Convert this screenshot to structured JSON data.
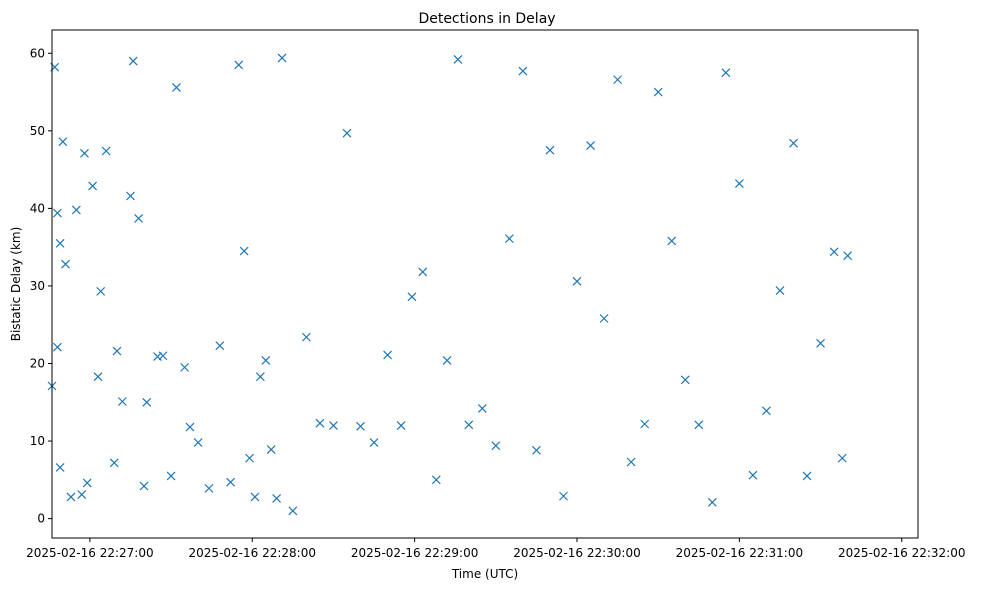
{
  "chart_data": {
    "type": "scatter",
    "title": "Detections in Delay",
    "xlabel": "Time (UTC)",
    "ylabel": "Bistatic Delay (km)",
    "marker": "x",
    "color": "#1f77b4",
    "grid": false,
    "xlim": [
      "2025-02-16 22:26:46",
      "2025-02-16 22:32:06"
    ],
    "ylim": [
      -2.5,
      63
    ],
    "xticks": [
      "2025-02-16 22:27:00",
      "2025-02-16 22:28:00",
      "2025-02-16 22:29:00",
      "2025-02-16 22:30:00",
      "2025-02-16 22:31:00",
      "2025-02-16 22:32:00"
    ],
    "yticks": [
      0,
      10,
      20,
      30,
      40,
      50,
      60
    ],
    "series": [
      {
        "x": [
          "2025-02-16 22:26:46",
          "2025-02-16 22:26:47",
          "2025-02-16 22:26:48",
          "2025-02-16 22:26:48",
          "2025-02-16 22:26:49",
          "2025-02-16 22:26:49",
          "2025-02-16 22:26:50",
          "2025-02-16 22:26:51",
          "2025-02-16 22:26:53",
          "2025-02-16 22:26:55",
          "2025-02-16 22:26:57",
          "2025-02-16 22:26:58",
          "2025-02-16 22:26:59",
          "2025-02-16 22:27:01",
          "2025-02-16 22:27:03",
          "2025-02-16 22:27:04",
          "2025-02-16 22:27:06",
          "2025-02-16 22:27:09",
          "2025-02-16 22:27:10",
          "2025-02-16 22:27:12",
          "2025-02-16 22:27:15",
          "2025-02-16 22:27:16",
          "2025-02-16 22:27:18",
          "2025-02-16 22:27:20",
          "2025-02-16 22:27:21",
          "2025-02-16 22:27:25",
          "2025-02-16 22:27:27",
          "2025-02-16 22:27:30",
          "2025-02-16 22:27:32",
          "2025-02-16 22:27:35",
          "2025-02-16 22:27:37",
          "2025-02-16 22:27:40",
          "2025-02-16 22:27:44",
          "2025-02-16 22:27:48",
          "2025-02-16 22:27:52",
          "2025-02-16 22:27:55",
          "2025-02-16 22:27:57",
          "2025-02-16 22:27:59",
          "2025-02-16 22:28:01",
          "2025-02-16 22:28:03",
          "2025-02-16 22:28:05",
          "2025-02-16 22:28:07",
          "2025-02-16 22:28:09",
          "2025-02-16 22:28:11",
          "2025-02-16 22:28:15",
          "2025-02-16 22:28:20",
          "2025-02-16 22:28:25",
          "2025-02-16 22:28:30",
          "2025-02-16 22:28:35",
          "2025-02-16 22:28:40",
          "2025-02-16 22:28:45",
          "2025-02-16 22:28:50",
          "2025-02-16 22:28:55",
          "2025-02-16 22:28:59",
          "2025-02-16 22:29:03",
          "2025-02-16 22:29:08",
          "2025-02-16 22:29:12",
          "2025-02-16 22:29:16",
          "2025-02-16 22:29:20",
          "2025-02-16 22:29:25",
          "2025-02-16 22:29:30",
          "2025-02-16 22:29:35",
          "2025-02-16 22:29:40",
          "2025-02-16 22:29:45",
          "2025-02-16 22:29:50",
          "2025-02-16 22:29:55",
          "2025-02-16 22:30:00",
          "2025-02-16 22:30:05",
          "2025-02-16 22:30:10",
          "2025-02-16 22:30:15",
          "2025-02-16 22:30:20",
          "2025-02-16 22:30:25",
          "2025-02-16 22:30:30",
          "2025-02-16 22:30:35",
          "2025-02-16 22:30:40",
          "2025-02-16 22:30:45",
          "2025-02-16 22:30:50",
          "2025-02-16 22:30:55",
          "2025-02-16 22:31:00",
          "2025-02-16 22:31:05",
          "2025-02-16 22:31:10",
          "2025-02-16 22:31:15",
          "2025-02-16 22:31:20",
          "2025-02-16 22:31:25",
          "2025-02-16 22:31:30",
          "2025-02-16 22:31:35",
          "2025-02-16 22:31:38",
          "2025-02-16 22:31:40"
        ],
        "y": [
          17.1,
          58.2,
          22.1,
          39.4,
          6.6,
          35.5,
          48.6,
          32.8,
          2.8,
          39.8,
          3.1,
          47.1,
          4.6,
          42.9,
          18.3,
          29.3,
          47.4,
          7.2,
          21.6,
          15.1,
          41.6,
          59.0,
          38.7,
          4.2,
          15.0,
          20.9,
          21.0,
          5.5,
          55.6,
          19.5,
          11.8,
          9.8,
          3.9,
          22.3,
          4.7,
          58.5,
          34.5,
          7.8,
          2.8,
          18.3,
          20.4,
          8.9,
          2.6,
          59.4,
          1.0,
          23.4,
          12.3,
          12.0,
          49.7,
          11.9,
          9.8,
          21.1,
          12.0,
          28.6,
          31.8,
          5.0,
          20.4,
          59.2,
          12.1,
          14.2,
          9.4,
          36.1,
          57.7,
          8.8,
          47.5,
          2.9,
          30.6,
          48.1,
          25.8,
          56.6,
          7.3,
          12.2,
          55.0,
          35.8,
          17.9,
          12.1,
          2.1,
          57.5,
          43.2,
          5.6,
          13.9,
          29.4,
          48.4,
          5.5,
          22.6,
          34.4,
          7.8,
          33.9
        ]
      }
    ]
  }
}
